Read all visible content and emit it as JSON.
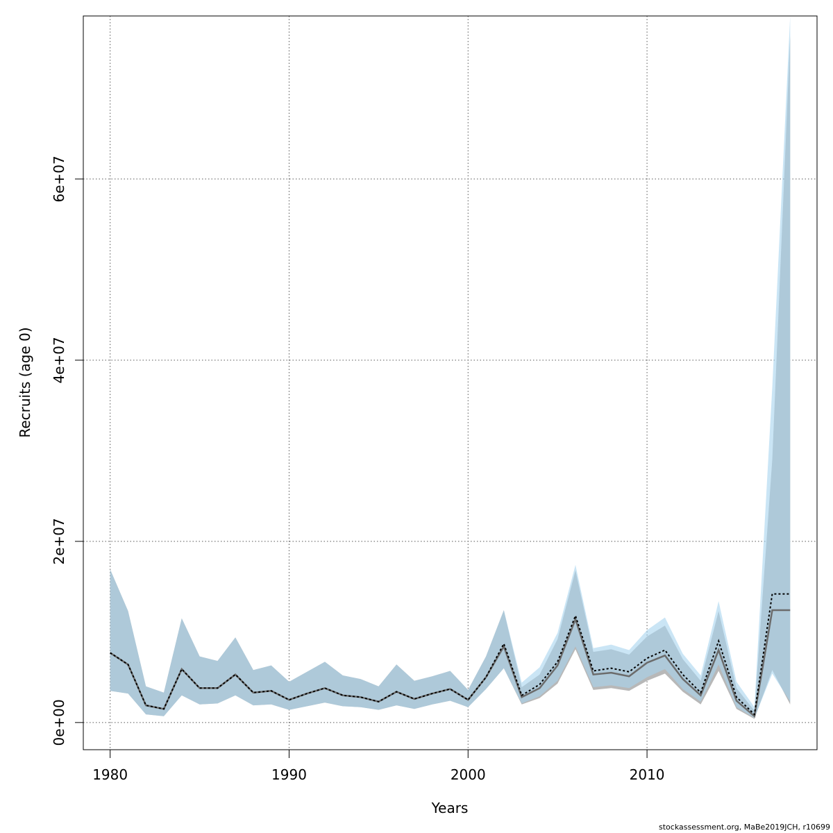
{
  "chart_data": {
    "type": "area",
    "xlabel": "Years",
    "ylabel": "Recruits (age 0)",
    "xlim": [
      1978.5,
      2019.5
    ],
    "ylim": [
      -3000000,
      78000000
    ],
    "x_ticks": [
      1980,
      1990,
      2000,
      2010
    ],
    "y_ticks": [
      0,
      20000000,
      40000000,
      60000000
    ],
    "y_tick_labels": [
      "0e+00",
      "2e+07",
      "4e+07",
      "6e+07"
    ],
    "grid": true,
    "colors": {
      "band_gray": "#b8b8b8",
      "band_blue": "#a6d3ef",
      "line_gray": "#6b6b6b",
      "line_dotted": "#000000"
    },
    "years": [
      1980,
      1981,
      1982,
      1983,
      1984,
      1985,
      1986,
      1987,
      1988,
      1989,
      1990,
      1991,
      1992,
      1993,
      1994,
      1995,
      1996,
      1997,
      1998,
      1999,
      2000,
      2001,
      2002,
      2003,
      2004,
      2005,
      2006,
      2007,
      2008,
      2009,
      2010,
      2011,
      2012,
      2013,
      2014,
      2015,
      2016,
      2017,
      2018
    ],
    "series": [
      {
        "values": [
          7700000,
          6400000,
          1900000,
          1500000,
          5900000,
          3800000,
          3800000,
          5300000,
          3300000,
          3500000,
          2500000,
          3200000,
          3800000,
          3000000,
          2800000,
          2300000,
          3400000,
          2600000,
          3200000,
          3700000,
          2500000,
          5000000,
          8400000,
          2800000,
          3800000,
          6300000,
          11400000,
          5300000,
          5500000,
          5100000,
          6600000,
          7400000,
          4800000,
          3000000,
          8000000,
          2400000,
          700000,
          12400000,
          12400000
        ],
        "lower": [
          3500000,
          3200000,
          900000,
          700000,
          3000000,
          2000000,
          2100000,
          3000000,
          1900000,
          2000000,
          1400000,
          1800000,
          2200000,
          1800000,
          1700000,
          1400000,
          1900000,
          1500000,
          2000000,
          2400000,
          1700000,
          3700000,
          6000000,
          2000000,
          2700000,
          4300000,
          8100000,
          3600000,
          3800000,
          3500000,
          4600000,
          5400000,
          3400000,
          2000000,
          5700000,
          1500000,
          400000,
          5800000,
          2000000
        ],
        "upper": [
          16900000,
          12300000,
          4000000,
          3300000,
          11500000,
          7300000,
          6800000,
          9400000,
          5800000,
          6300000,
          4500000,
          5600000,
          6700000,
          5200000,
          4800000,
          4000000,
          6400000,
          4600000,
          5100000,
          5700000,
          3600000,
          7300000,
          12400000,
          3900000,
          5300000,
          9200000,
          16800000,
          7800000,
          8100000,
          7500000,
          9500000,
          10700000,
          7000000,
          4600000,
          12300000,
          3800000,
          1300000,
          29000000,
          75800000
        ]
      },
      {
        "values": [
          7700000,
          6400000,
          1900000,
          1500000,
          5900000,
          3800000,
          3800000,
          5300000,
          3300000,
          3500000,
          2500000,
          3200000,
          3800000,
          3000000,
          2800000,
          2300000,
          3400000,
          2600000,
          3200000,
          3700000,
          2500000,
          5000000,
          8700000,
          3000000,
          4200000,
          6700000,
          11800000,
          5700000,
          6000000,
          5600000,
          7100000,
          8000000,
          5300000,
          3300000,
          9000000,
          2800000,
          900000,
          14200000,
          14200000
        ],
        "lower": [
          3500000,
          3200000,
          900000,
          700000,
          3000000,
          2000000,
          2100000,
          3000000,
          1900000,
          2000000,
          1400000,
          1800000,
          2200000,
          1800000,
          1700000,
          1400000,
          1900000,
          1500000,
          2000000,
          2400000,
          1700000,
          3700000,
          6000000,
          2100000,
          2900000,
          4600000,
          8400000,
          3900000,
          4100000,
          3800000,
          5000000,
          5900000,
          3700000,
          2300000,
          6400000,
          1700000,
          500000,
          5400000,
          2300000
        ],
        "upper": [
          16900000,
          12300000,
          4000000,
          3300000,
          11500000,
          7300000,
          6800000,
          9400000,
          5800000,
          6300000,
          4500000,
          5600000,
          6700000,
          5200000,
          4800000,
          4000000,
          6400000,
          4600000,
          5100000,
          5700000,
          3600000,
          7300000,
          12400000,
          4400000,
          6100000,
          9900000,
          17400000,
          8200000,
          8600000,
          8000000,
          10200000,
          11600000,
          7600000,
          5200000,
          13400000,
          4500000,
          1700000,
          37000000,
          78000000
        ]
      }
    ]
  },
  "footer": {
    "credit": "stockassessment.org, MaBe2019JCH, r10699"
  }
}
